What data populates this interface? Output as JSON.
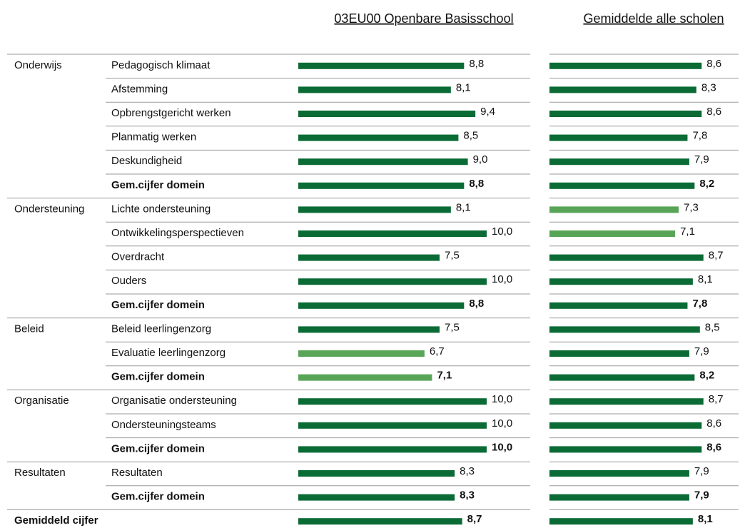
{
  "headers": {
    "school": "03EU00 Openbare Basisschool",
    "average": "Gemiddelde alle scholen"
  },
  "xlim": [
    0,
    10
  ],
  "colors": {
    "normal": "#0b6b35",
    "low": "#58a558"
  },
  "rows": [
    {
      "domain": "Onderwijs",
      "label": "Pedagogisch klimaat",
      "school": 8.8,
      "school_label": "8,8",
      "average": 8.6,
      "average_label": "8,6"
    },
    {
      "label": "Afstemming",
      "school": 8.1,
      "school_label": "8,1",
      "average": 8.3,
      "average_label": "8,3"
    },
    {
      "label": "Opbrengstgericht werken",
      "school": 9.4,
      "school_label": "9,4",
      "average": 8.6,
      "average_label": "8,6"
    },
    {
      "label": "Planmatig werken",
      "school": 8.5,
      "school_label": "8,5",
      "average": 7.8,
      "average_label": "7,8"
    },
    {
      "label": "Deskundigheid",
      "school": 9.0,
      "school_label": "9,0",
      "average": 7.9,
      "average_label": "7,9"
    },
    {
      "label": "Gem.cijfer domein",
      "bold": true,
      "school": 8.8,
      "school_label": "8,8",
      "average": 8.2,
      "average_label": "8,2"
    },
    {
      "domain": "Ondersteuning",
      "label": "Lichte ondersteuning",
      "school": 8.1,
      "school_label": "8,1",
      "average": 7.3,
      "average_label": "7,3",
      "average_color": "low"
    },
    {
      "label": "Ontwikkelingsperspectieven",
      "school": 10.0,
      "school_label": "10,0",
      "average": 7.1,
      "average_label": "7,1",
      "average_color": "low"
    },
    {
      "label": "Overdracht",
      "school": 7.5,
      "school_label": "7,5",
      "average": 8.7,
      "average_label": "8,7"
    },
    {
      "label": "Ouders",
      "school": 10.0,
      "school_label": "10,0",
      "average": 8.1,
      "average_label": "8,1"
    },
    {
      "label": "Gem.cijfer domein",
      "bold": true,
      "school": 8.8,
      "school_label": "8,8",
      "average": 7.8,
      "average_label": "7,8"
    },
    {
      "domain": "Beleid",
      "label": "Beleid leerlingenzorg",
      "school": 7.5,
      "school_label": "7,5",
      "average": 8.5,
      "average_label": "8,5"
    },
    {
      "label": "Evaluatie leerlingenzorg",
      "school": 6.7,
      "school_label": "6,7",
      "school_color": "low",
      "average": 7.9,
      "average_label": "7,9"
    },
    {
      "label": "Gem.cijfer domein",
      "bold": true,
      "school": 7.1,
      "school_label": "7,1",
      "school_color": "low",
      "average": 8.2,
      "average_label": "8,2"
    },
    {
      "domain": "Organisatie",
      "label": "Organisatie ondersteuning",
      "school": 10.0,
      "school_label": "10,0",
      "average": 8.7,
      "average_label": "8,7"
    },
    {
      "label": "Ondersteuningsteams",
      "school": 10.0,
      "school_label": "10,0",
      "average": 8.6,
      "average_label": "8,6"
    },
    {
      "label": "Gem.cijfer domein",
      "bold": true,
      "school": 10.0,
      "school_label": "10,0",
      "average": 8.6,
      "average_label": "8,6"
    },
    {
      "domain": "Resultaten",
      "label": "Resultaten",
      "school": 8.3,
      "school_label": "8,3",
      "average": 7.9,
      "average_label": "7,9"
    },
    {
      "label": "Gem.cijfer domein",
      "bold": true,
      "school": 8.3,
      "school_label": "8,3",
      "average": 7.9,
      "average_label": "7,9"
    },
    {
      "label": "Gemiddeld cijfer",
      "bold": true,
      "total": true,
      "school": 8.7,
      "school_label": "8,7",
      "average": 8.1,
      "average_label": "8,1"
    }
  ]
}
